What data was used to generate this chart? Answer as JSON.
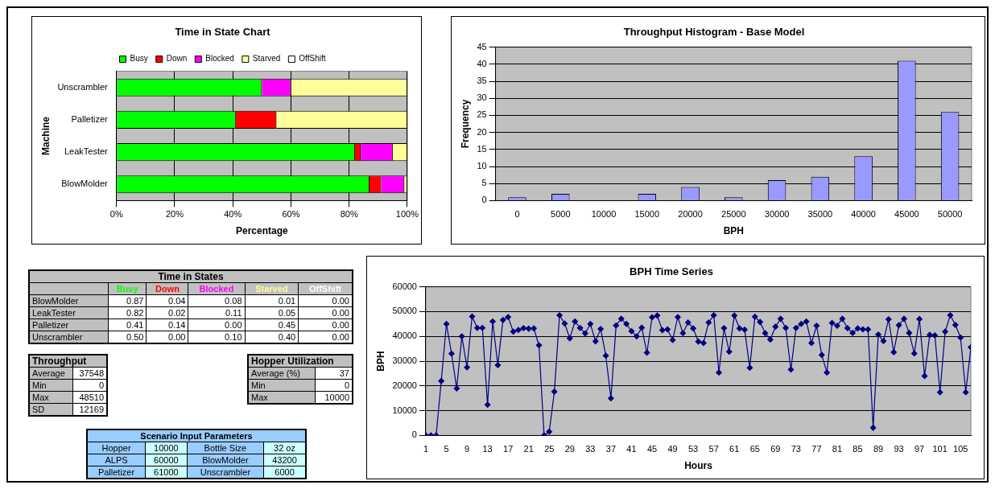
{
  "chart_data": [
    {
      "type": "bar",
      "title": "Time in State Chart",
      "orientation": "horizontal",
      "stacked": true,
      "xlabel": "Percentage",
      "ylabel": "Machine",
      "categories": [
        "Unscrambler",
        "Palletizer",
        "LeakTester",
        "BlowMolder"
      ],
      "series": [
        {
          "name": "Busy",
          "color": "#00ff00",
          "values": [
            50,
            41,
            82,
            87
          ]
        },
        {
          "name": "Down",
          "color": "#ff0000",
          "values": [
            0,
            14,
            2,
            4
          ]
        },
        {
          "name": "Blocked",
          "color": "#ff00ff",
          "values": [
            10,
            0,
            11,
            8
          ]
        },
        {
          "name": "Starved",
          "color": "#ffff99",
          "values": [
            40,
            45,
            5,
            1
          ]
        },
        {
          "name": "OffShift",
          "color": "#ffffff",
          "values": [
            0,
            0,
            0,
            0
          ]
        }
      ],
      "xlim": [
        0,
        100
      ],
      "xticks": [
        {
          "value": 0,
          "label": "0%"
        },
        {
          "value": 20,
          "label": "20%"
        },
        {
          "value": 40,
          "label": "40%"
        },
        {
          "value": 60,
          "label": "60%"
        },
        {
          "value": 80,
          "label": "80%"
        },
        {
          "value": 100,
          "label": "100%"
        }
      ],
      "grid": "x",
      "legend": "top"
    },
    {
      "type": "bar",
      "title": "Throughput Histogram - Base Model",
      "xlabel": "BPH",
      "ylabel": "Frequency",
      "categories": [
        "0",
        "5000",
        "10000",
        "15000",
        "20000",
        "25000",
        "30000",
        "35000",
        "40000",
        "45000",
        "50000"
      ],
      "values": [
        1,
        2,
        0,
        2,
        4,
        1,
        6,
        7,
        13,
        41,
        26
      ],
      "color": "#9999ff",
      "ylim": [
        0,
        45
      ],
      "yticks": [
        0,
        5,
        10,
        15,
        20,
        25,
        30,
        35,
        40,
        45
      ],
      "grid": "y"
    },
    {
      "type": "other",
      "title": "Time in States",
      "categories": [
        "Busy",
        "Down",
        "Blocked",
        "Starved",
        "OffShift"
      ],
      "y_categories": [
        "BlowMolder",
        "LeakTester",
        "Palletizer",
        "Unscrambler"
      ],
      "cell_labels": [
        [
          "0.87",
          "0.04",
          "0.08",
          "0.01",
          "0.00"
        ],
        [
          "0.82",
          "0.02",
          "0.11",
          "0.05",
          "0.00"
        ],
        [
          "0.41",
          "0.14",
          "0.00",
          "0.45",
          "0.00"
        ],
        [
          "0.50",
          "0.00",
          "0.10",
          "0.40",
          "0.00"
        ]
      ]
    },
    {
      "type": "line",
      "title": "BPH Time Series",
      "xlabel": "Hours",
      "ylabel": "BPH",
      "color": "#000080",
      "marker": "diamond",
      "grid": "y",
      "xlim": [
        1,
        107
      ],
      "xticks": [
        1,
        5,
        9,
        13,
        17,
        21,
        25,
        29,
        33,
        37,
        41,
        45,
        49,
        53,
        57,
        61,
        65,
        69,
        73,
        77,
        81,
        85,
        89,
        93,
        97,
        101,
        105
      ],
      "ylim": [
        0,
        60000
      ],
      "yticks": [
        0,
        10000,
        20000,
        30000,
        40000,
        50000,
        60000
      ],
      "x": [
        1,
        2,
        3,
        4,
        5,
        6,
        7,
        8,
        9,
        10,
        11,
        12,
        13,
        14,
        15,
        16,
        17,
        18,
        19,
        20,
        21,
        22,
        23,
        24,
        25,
        26,
        27,
        28,
        29,
        30,
        31,
        32,
        33,
        34,
        35,
        36,
        37,
        38,
        39,
        40,
        41,
        42,
        43,
        44,
        45,
        46,
        47,
        48,
        49,
        50,
        51,
        52,
        53,
        54,
        55,
        56,
        57,
        58,
        59,
        60,
        61,
        62,
        63,
        64,
        65,
        66,
        67,
        68,
        69,
        70,
        71,
        72,
        73,
        74,
        75,
        76,
        77,
        78,
        79,
        80,
        81,
        82,
        83,
        84,
        85,
        86,
        87,
        88,
        89,
        90,
        91,
        92,
        93,
        94,
        95,
        96,
        97,
        98,
        99,
        100,
        101,
        102,
        103,
        104,
        105,
        106,
        107
      ],
      "values": [
        0,
        0,
        0,
        22000,
        45000,
        33000,
        19000,
        40000,
        27500,
        48000,
        43400,
        43400,
        12400,
        46000,
        28400,
        46600,
        47800,
        41900,
        42600,
        43300,
        43100,
        43200,
        36400,
        0,
        1500,
        17700,
        48500,
        45200,
        39200,
        46000,
        43400,
        41200,
        45000,
        38000,
        43000,
        32200,
        15000,
        44400,
        47100,
        45000,
        42100,
        40000,
        43500,
        33400,
        47700,
        48400,
        42500,
        42800,
        38500,
        47800,
        41300,
        45600,
        43200,
        37900,
        37300,
        45600,
        48500,
        25400,
        43300,
        33800,
        48400,
        43200,
        42700,
        27300,
        47900,
        45800,
        41300,
        38700,
        43900,
        47100,
        43400,
        26600,
        43400,
        45000,
        46000,
        37300,
        44300,
        32500,
        25400,
        45400,
        44300,
        47100,
        43300,
        41400,
        43200,
        42800,
        42800,
        3100,
        40700,
        38100,
        46900,
        33600,
        44500,
        47100,
        41400,
        33100,
        47000,
        24000,
        40600,
        40400,
        17400,
        41900,
        48500,
        44600,
        39500,
        17400,
        35600
      ]
    },
    {
      "type": "other",
      "title": "Throughput",
      "y_categories": [
        "Average",
        "Min",
        "Max",
        "SD"
      ],
      "cell_labels": [
        [
          "37548"
        ],
        [
          "0"
        ],
        [
          "48510"
        ],
        [
          "12169"
        ]
      ]
    },
    {
      "type": "other",
      "title": "Hopper Utilization",
      "y_categories": [
        "Average (%)",
        "Min",
        "Max"
      ],
      "cell_labels": [
        [
          "37"
        ],
        [
          "0"
        ],
        [
          "10000"
        ]
      ]
    },
    {
      "type": "other",
      "title": "Scenario Input Parameters",
      "y_categories": [
        "Hopper",
        "ALPS",
        "Palletizer",
        "Bottle Size",
        "BlowMolder",
        "Unscrambler"
      ],
      "cell_labels": [
        [
          "10000"
        ],
        [
          "60000"
        ],
        [
          "61000"
        ],
        [
          "32 oz"
        ],
        [
          "43200"
        ],
        [
          "6000"
        ]
      ]
    }
  ]
}
